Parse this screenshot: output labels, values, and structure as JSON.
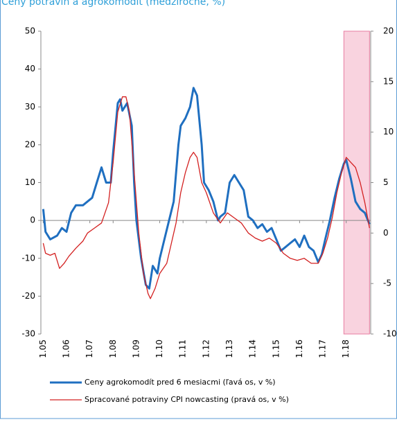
{
  "chart_data": {
    "type": "line",
    "title": "Ceny potravín a agrokomodít (medziročne, %)",
    "xlim": [
      2004.9,
      2019.05
    ],
    "xticks": [
      {
        "value": 2005,
        "label": "1.05"
      },
      {
        "value": 2006,
        "label": "1.06"
      },
      {
        "value": 2007,
        "label": "1.07"
      },
      {
        "value": 2008,
        "label": "1.08"
      },
      {
        "value": 2009,
        "label": "1.09"
      },
      {
        "value": 2010,
        "label": "1.10"
      },
      {
        "value": 2011,
        "label": "1.11"
      },
      {
        "value": 2012,
        "label": "1.12"
      },
      {
        "value": 2013,
        "label": "1.13"
      },
      {
        "value": 2014,
        "label": "1.14"
      },
      {
        "value": 2015,
        "label": "1.15"
      },
      {
        "value": 2016,
        "label": "1.16"
      },
      {
        "value": 2017,
        "label": "1.17"
      },
      {
        "value": 2018,
        "label": "1.18"
      }
    ],
    "ylim": [
      -30,
      50
    ],
    "yticks": [
      -30,
      -20,
      -10,
      0,
      10,
      20,
      30,
      40,
      50
    ],
    "y2lim": [
      -10,
      20
    ],
    "y2ticks": [
      -10,
      -5,
      0,
      5,
      10,
      15,
      20
    ],
    "shade": {
      "from": 2017.9,
      "to": 2019.0,
      "color": "#f9d3df"
    },
    "series": [
      {
        "name": "Ceny agrokomodít pred 6 mesiacmi (ľavá os, v %)",
        "color": "#1f6fc0",
        "axis": "y",
        "x": [
          2005.0,
          2005.1,
          2005.3,
          2005.6,
          2005.8,
          2006.0,
          2006.2,
          2006.4,
          2006.7,
          2006.9,
          2007.1,
          2007.3,
          2007.5,
          2007.7,
          2007.9,
          2008.0,
          2008.2,
          2008.3,
          2008.4,
          2008.6,
          2008.8,
          2008.9,
          2009.0,
          2009.2,
          2009.4,
          2009.55,
          2009.7,
          2009.9,
          2010.0,
          2010.2,
          2010.4,
          2010.6,
          2010.8,
          2010.9,
          2011.1,
          2011.3,
          2011.45,
          2011.6,
          2011.8,
          2011.9,
          2012.1,
          2012.3,
          2012.5,
          2012.6,
          2012.8,
          2013.0,
          2013.2,
          2013.4,
          2013.6,
          2013.8,
          2014.0,
          2014.2,
          2014.4,
          2014.6,
          2014.8,
          2015.0,
          2015.2,
          2015.4,
          2015.6,
          2015.8,
          2016.0,
          2016.2,
          2016.4,
          2016.6,
          2016.8,
          2016.95,
          2017.1,
          2017.3,
          2017.5,
          2017.7,
          2017.9,
          2018.0,
          2018.2,
          2018.4,
          2018.6,
          2018.8,
          2019.0
        ],
        "values": [
          3,
          -3,
          -5,
          -4,
          -2,
          -3,
          2,
          4,
          4,
          5,
          6,
          10,
          14,
          10,
          10,
          18,
          31,
          32,
          29,
          31,
          25,
          10,
          0,
          -10,
          -17,
          -18,
          -12,
          -14,
          -10,
          -5,
          0,
          5,
          20,
          25,
          27,
          30,
          35,
          33,
          20,
          10,
          8,
          5,
          0,
          1,
          2,
          10,
          12,
          10,
          8,
          1,
          0,
          -2,
          -1,
          -3,
          -2,
          -5,
          -8,
          -7,
          -6,
          -5,
          -7,
          -4,
          -7,
          -8,
          -11,
          -9,
          -5,
          0,
          6,
          11,
          15,
          16,
          11,
          5,
          3,
          2,
          -1
        ]
      },
      {
        "name": "Spracované potraviny CPI nowcasting (pravá os, v %)",
        "color": "#d32020",
        "axis": "y2",
        "x": [
          2005.0,
          2005.1,
          2005.3,
          2005.5,
          2005.7,
          2005.9,
          2006.1,
          2006.4,
          2006.7,
          2006.9,
          2007.2,
          2007.5,
          2007.8,
          2008.0,
          2008.2,
          2008.4,
          2008.55,
          2008.7,
          2008.9,
          2009.1,
          2009.3,
          2009.5,
          2009.6,
          2009.8,
          2010.0,
          2010.3,
          2010.5,
          2010.7,
          2010.9,
          2011.1,
          2011.3,
          2011.45,
          2011.6,
          2011.8,
          2012.0,
          2012.3,
          2012.6,
          2012.9,
          2013.2,
          2013.5,
          2013.8,
          2014.1,
          2014.4,
          2014.7,
          2015.0,
          2015.3,
          2015.6,
          2015.9,
          2016.2,
          2016.5,
          2016.8,
          2017.0,
          2017.2,
          2017.4,
          2017.6,
          2017.8,
          2018.0,
          2018.2,
          2018.4,
          2018.6,
          2018.8,
          2019.0
        ],
        "values": [
          -1,
          -2,
          -2.2,
          -2,
          -3.5,
          -3,
          -2.3,
          -1.5,
          -0.8,
          0,
          0.5,
          1,
          3,
          7,
          12,
          13.5,
          13.5,
          12,
          6,
          0,
          -4,
          -6,
          -6.5,
          -5.5,
          -4,
          -3,
          -1,
          1,
          4,
          6,
          7.5,
          8,
          7.5,
          5,
          4,
          2,
          1,
          2,
          1.5,
          1,
          0,
          -0.5,
          -0.8,
          -0.5,
          -1,
          -2,
          -2.5,
          -2.7,
          -2.5,
          -3,
          -3,
          -2,
          -0.5,
          1.5,
          4,
          6,
          7.5,
          7,
          6.5,
          5,
          3,
          0.5
        ]
      }
    ]
  }
}
